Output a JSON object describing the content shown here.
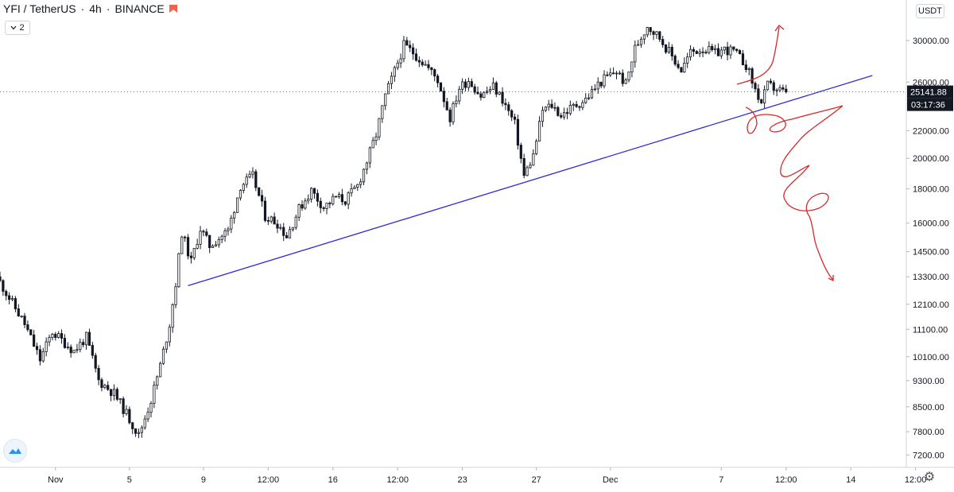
{
  "header": {
    "symbol": "YFI / TetherUS",
    "interval": "4h",
    "exchange": "BINANCE",
    "indicator_toggle_label": "2",
    "unit": "USDT"
  },
  "icons": [
    "status-flag-icon",
    "chevron-down-icon",
    "tradingview-logo-icon",
    "gear-icon"
  ],
  "colors": {
    "candle": "#131722",
    "trendline": "#2b2bd6",
    "drawing": "#d42a2a",
    "axis_text": "#131722",
    "grid": "#e0e3eb",
    "price_label_bg": "#131722",
    "status_flag": "#f0624f"
  },
  "chart_data": {
    "type": "candlestick",
    "title": "YFI / TetherUS",
    "interval": "4h",
    "y_scale": "log",
    "ylim": [
      6900,
      34500
    ],
    "y_ticks": [
      "30000.00",
      "26000.00",
      "22000.00",
      "20000.00",
      "18000.00",
      "16000.00",
      "14500.00",
      "13300.00",
      "12100.00",
      "11100.00",
      "10100.00",
      "9300.00",
      "8500.00",
      "7800.00",
      "7200.00"
    ],
    "y_tick_values": [
      30000,
      26000,
      22000,
      20000,
      18000,
      16000,
      14500,
      13300,
      12100,
      11100,
      10100,
      9300,
      8500,
      7800,
      7200
    ],
    "x_ticks": [
      "Nov",
      "5",
      "9",
      "12:00",
      "16",
      "12:00",
      "23",
      "27",
      "Dec",
      "7",
      "12:00",
      "14",
      "12:00"
    ],
    "x_range": [
      "2020-10-29",
      "2020-12-17"
    ],
    "x_tick_dates": [
      "2020-11-01",
      "2020-11-05",
      "2020-11-09",
      "2020-11-12T12:00",
      "2020-11-16",
      "2020-11-19T12:00",
      "2020-11-23",
      "2020-11-27",
      "2020-12-01",
      "2020-12-07",
      "2020-12-10T12:00",
      "2020-12-14",
      "2020-12-17T12:00"
    ],
    "last_price": "25141.88",
    "countdown": "03:17:36",
    "path": [
      [
        "2020-10-29T00:00",
        13300
      ],
      [
        "2020-10-30T12:00",
        11300
      ],
      [
        "2020-10-31T08:00",
        10000
      ],
      [
        "2020-11-01T00:00",
        11000
      ],
      [
        "2020-11-02T04:00",
        10300
      ],
      [
        "2020-11-02T20:00",
        10800
      ],
      [
        "2020-11-03T12:00",
        9300
      ],
      [
        "2020-11-04T08:00",
        8900
      ],
      [
        "2020-11-05T00:00",
        8300
      ],
      [
        "2020-11-05T16:00",
        7700
      ],
      [
        "2020-11-06T08:00",
        8700
      ],
      [
        "2020-11-06T20:00",
        9800
      ],
      [
        "2020-11-07T08:00",
        11300
      ],
      [
        "2020-11-07T16:00",
        13000
      ],
      [
        "2020-11-08T00:00",
        15500
      ],
      [
        "2020-11-08T12:00",
        14000
      ],
      [
        "2020-11-09T00:00",
        15700
      ],
      [
        "2020-11-09T12:00",
        14800
      ],
      [
        "2020-11-10T12:00",
        15600
      ],
      [
        "2020-11-11T04:00",
        18200
      ],
      [
        "2020-11-11T20:00",
        18800
      ],
      [
        "2020-11-12T12:00",
        16400
      ],
      [
        "2020-11-13T04:00",
        16000
      ],
      [
        "2020-11-13T16:00",
        15300
      ],
      [
        "2020-11-14T08:00",
        16800
      ],
      [
        "2020-11-15T00:00",
        17900
      ],
      [
        "2020-11-15T16:00",
        16900
      ],
      [
        "2020-11-16T08:00",
        17500
      ],
      [
        "2020-11-16T20:00",
        17300
      ],
      [
        "2020-11-17T12:00",
        18200
      ],
      [
        "2020-11-18T00:00",
        19800
      ],
      [
        "2020-11-18T12:00",
        21700
      ],
      [
        "2020-11-19T00:00",
        24800
      ],
      [
        "2020-11-19T12:00",
        27000
      ],
      [
        "2020-11-20T00:00",
        29500
      ],
      [
        "2020-11-20T12:00",
        28800
      ],
      [
        "2020-11-21T04:00",
        27600
      ],
      [
        "2020-11-21T20:00",
        26200
      ],
      [
        "2020-11-22T12:00",
        23000
      ],
      [
        "2020-11-23T00:00",
        25500
      ],
      [
        "2020-11-23T12:00",
        26200
      ],
      [
        "2020-11-24T04:00",
        24800
      ],
      [
        "2020-11-24T20:00",
        25600
      ],
      [
        "2020-11-25T08:00",
        24500
      ],
      [
        "2020-11-26T00:00",
        22500
      ],
      [
        "2020-11-26T12:00",
        18800
      ],
      [
        "2020-11-27T00:00",
        20200
      ],
      [
        "2020-11-27T12:00",
        23600
      ],
      [
        "2020-11-28T00:00",
        24000
      ],
      [
        "2020-11-28T12:00",
        23200
      ],
      [
        "2020-11-29T04:00",
        23900
      ],
      [
        "2020-11-29T20:00",
        24500
      ],
      [
        "2020-11-30T12:00",
        25800
      ],
      [
        "2020-12-01T00:00",
        26500
      ],
      [
        "2020-12-01T12:00",
        27000
      ],
      [
        "2020-12-02T00:00",
        25800
      ],
      [
        "2020-12-02T12:00",
        29200
      ],
      [
        "2020-12-03T04:00",
        31600
      ],
      [
        "2020-12-03T20:00",
        30300
      ],
      [
        "2020-12-04T12:00",
        28400
      ],
      [
        "2020-12-05T00:00",
        27100
      ],
      [
        "2020-12-05T12:00",
        28800
      ],
      [
        "2020-12-06T04:00",
        29200
      ],
      [
        "2020-12-06T20:00",
        28700
      ],
      [
        "2020-12-07T08:00",
        29100
      ],
      [
        "2020-12-07T20:00",
        28900
      ],
      [
        "2020-12-08T12:00",
        27600
      ],
      [
        "2020-12-09T00:00",
        25300
      ],
      [
        "2020-12-09T08:00",
        24200
      ],
      [
        "2020-12-09T16:00",
        25700
      ],
      [
        "2020-12-10T04:00",
        25400
      ],
      [
        "2020-12-10T12:00",
        25140
      ]
    ],
    "trendline": {
      "start": [
        "2020-11-08T04:00",
        12900
      ],
      "end": [
        "2020-12-15T04:00",
        26600
      ]
    }
  }
}
